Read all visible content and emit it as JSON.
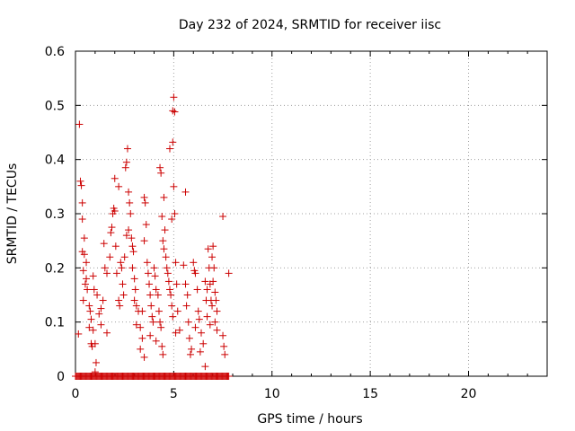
{
  "chart_data": {
    "type": "scatter",
    "title": "Day 232 of 2024, SRMTID for receiver iisc",
    "xlabel": "GPS time / hours",
    "ylabel": "SRMTID / TECUs",
    "xlim": [
      0,
      24
    ],
    "ylim": [
      0,
      0.6
    ],
    "x_ticks": [
      0,
      5,
      10,
      15,
      20
    ],
    "x_tick_labels": [
      "0",
      "5",
      "10",
      "15",
      "20"
    ],
    "y_ticks": [
      0,
      0.1,
      0.2,
      0.3,
      0.4,
      0.5,
      0.6
    ],
    "y_tick_labels": [
      "0",
      "0.1",
      "0.2",
      "0.3",
      "0.4",
      "0.5",
      "0.6"
    ],
    "grid": true,
    "marker": "plus",
    "series": [
      {
        "name": "iisc",
        "color": "#cc0000",
        "points": [
          [
            0.2,
            0.465
          ],
          [
            0.25,
            0.36
          ],
          [
            0.3,
            0.352
          ],
          [
            0.35,
            0.32
          ],
          [
            0.35,
            0.29
          ],
          [
            0.45,
            0.255
          ],
          [
            0.35,
            0.23
          ],
          [
            0.45,
            0.225
          ],
          [
            0.55,
            0.21
          ],
          [
            0.4,
            0.195
          ],
          [
            0.5,
            0.17
          ],
          [
            0.6,
            0.16
          ],
          [
            0.55,
            0.18
          ],
          [
            0.4,
            0.14
          ],
          [
            0.7,
            0.13
          ],
          [
            0.75,
            0.12
          ],
          [
            0.8,
            0.105
          ],
          [
            0.7,
            0.09
          ],
          [
            0.9,
            0.085
          ],
          [
            0.8,
            0.06
          ],
          [
            1.0,
            0.06
          ],
          [
            0.85,
            0.055
          ],
          [
            1.05,
            0.025
          ],
          [
            1.0,
            0.008
          ],
          [
            0.15,
            0.078
          ],
          [
            0.9,
            0.185
          ],
          [
            0.95,
            0.16
          ],
          [
            1.1,
            0.15
          ],
          [
            1.2,
            0.115
          ],
          [
            1.3,
            0.125
          ],
          [
            1.4,
            0.14
          ],
          [
            1.5,
            0.2
          ],
          [
            1.45,
            0.245
          ],
          [
            1.6,
            0.19
          ],
          [
            1.75,
            0.22
          ],
          [
            1.8,
            0.265
          ],
          [
            1.85,
            0.275
          ],
          [
            1.9,
            0.3
          ],
          [
            1.95,
            0.31
          ],
          [
            2.0,
            0.305
          ],
          [
            2.05,
            0.24
          ],
          [
            2.1,
            0.19
          ],
          [
            2.0,
            0.365
          ],
          [
            2.2,
            0.35
          ],
          [
            2.3,
            0.21
          ],
          [
            2.35,
            0.2
          ],
          [
            2.4,
            0.17
          ],
          [
            2.45,
            0.15
          ],
          [
            2.5,
            0.22
          ],
          [
            2.6,
            0.26
          ],
          [
            2.55,
            0.385
          ],
          [
            2.6,
            0.395
          ],
          [
            2.65,
            0.42
          ],
          [
            2.7,
            0.34
          ],
          [
            2.75,
            0.32
          ],
          [
            2.8,
            0.3
          ],
          [
            2.7,
            0.27
          ],
          [
            2.85,
            0.255
          ],
          [
            2.9,
            0.24
          ],
          [
            2.95,
            0.23
          ],
          [
            2.9,
            0.2
          ],
          [
            3.0,
            0.18
          ],
          [
            3.05,
            0.16
          ],
          [
            3.0,
            0.14
          ],
          [
            3.1,
            0.13
          ],
          [
            3.2,
            0.12
          ],
          [
            3.1,
            0.095
          ],
          [
            3.3,
            0.09
          ],
          [
            3.4,
            0.07
          ],
          [
            3.3,
            0.05
          ],
          [
            3.5,
            0.035
          ],
          [
            3.5,
            0.33
          ],
          [
            3.55,
            0.32
          ],
          [
            3.6,
            0.28
          ],
          [
            3.5,
            0.25
          ],
          [
            3.65,
            0.21
          ],
          [
            3.7,
            0.19
          ],
          [
            3.75,
            0.17
          ],
          [
            3.8,
            0.15
          ],
          [
            3.85,
            0.13
          ],
          [
            3.9,
            0.11
          ],
          [
            3.95,
            0.1
          ],
          [
            4.0,
            0.2
          ],
          [
            4.05,
            0.185
          ],
          [
            4.1,
            0.16
          ],
          [
            4.2,
            0.15
          ],
          [
            4.25,
            0.12
          ],
          [
            4.3,
            0.1
          ],
          [
            4.35,
            0.09
          ],
          [
            4.4,
            0.055
          ],
          [
            4.45,
            0.04
          ],
          [
            4.3,
            0.385
          ],
          [
            4.35,
            0.375
          ],
          [
            4.5,
            0.33
          ],
          [
            4.4,
            0.295
          ],
          [
            4.55,
            0.27
          ],
          [
            4.45,
            0.25
          ],
          [
            4.5,
            0.235
          ],
          [
            4.6,
            0.22
          ],
          [
            4.65,
            0.2
          ],
          [
            4.7,
            0.19
          ],
          [
            4.75,
            0.175
          ],
          [
            4.8,
            0.16
          ],
          [
            4.85,
            0.15
          ],
          [
            4.9,
            0.13
          ],
          [
            4.95,
            0.11
          ],
          [
            5.0,
            0.515
          ],
          [
            4.95,
            0.49
          ],
          [
            5.05,
            0.488
          ],
          [
            4.95,
            0.432
          ],
          [
            4.8,
            0.42
          ],
          [
            5.0,
            0.35
          ],
          [
            5.05,
            0.3
          ],
          [
            4.9,
            0.29
          ],
          [
            5.1,
            0.21
          ],
          [
            5.15,
            0.17
          ],
          [
            5.2,
            0.12
          ],
          [
            5.3,
            0.085
          ],
          [
            5.1,
            0.08
          ],
          [
            5.6,
            0.34
          ],
          [
            5.5,
            0.205
          ],
          [
            5.6,
            0.17
          ],
          [
            5.7,
            0.15
          ],
          [
            5.65,
            0.13
          ],
          [
            5.75,
            0.1
          ],
          [
            5.8,
            0.07
          ],
          [
            5.9,
            0.05
          ],
          [
            5.85,
            0.04
          ],
          [
            6.0,
            0.21
          ],
          [
            6.05,
            0.195
          ],
          [
            6.1,
            0.19
          ],
          [
            6.2,
            0.16
          ],
          [
            6.25,
            0.12
          ],
          [
            6.3,
            0.105
          ],
          [
            6.4,
            0.08
          ],
          [
            6.5,
            0.06
          ],
          [
            6.6,
            0.175
          ],
          [
            6.7,
            0.16
          ],
          [
            6.65,
            0.14
          ],
          [
            6.7,
            0.11
          ],
          [
            6.75,
            0.235
          ],
          [
            6.8,
            0.2
          ],
          [
            6.85,
            0.17
          ],
          [
            6.9,
            0.14
          ],
          [
            6.95,
            0.13
          ],
          [
            7.0,
            0.24
          ],
          [
            6.95,
            0.22
          ],
          [
            7.05,
            0.2
          ],
          [
            7.0,
            0.175
          ],
          [
            7.1,
            0.155
          ],
          [
            7.15,
            0.14
          ],
          [
            7.2,
            0.12
          ],
          [
            7.1,
            0.1
          ],
          [
            7.2,
            0.085
          ],
          [
            6.6,
            0.018
          ],
          [
            7.5,
            0.295
          ],
          [
            7.8,
            0.19
          ],
          [
            7.5,
            0.075
          ],
          [
            7.55,
            0.055
          ],
          [
            7.6,
            0.04
          ],
          [
            2.2,
            0.14
          ],
          [
            2.25,
            0.13
          ],
          [
            1.3,
            0.095
          ],
          [
            1.6,
            0.08
          ],
          [
            3.4,
            0.12
          ],
          [
            3.8,
            0.075
          ],
          [
            4.1,
            0.065
          ],
          [
            6.1,
            0.09
          ],
          [
            6.35,
            0.045
          ],
          [
            6.85,
            0.095
          ]
        ]
      }
    ],
    "zero_band": {
      "x_range": [
        0,
        7.8
      ],
      "y": 0
    }
  }
}
